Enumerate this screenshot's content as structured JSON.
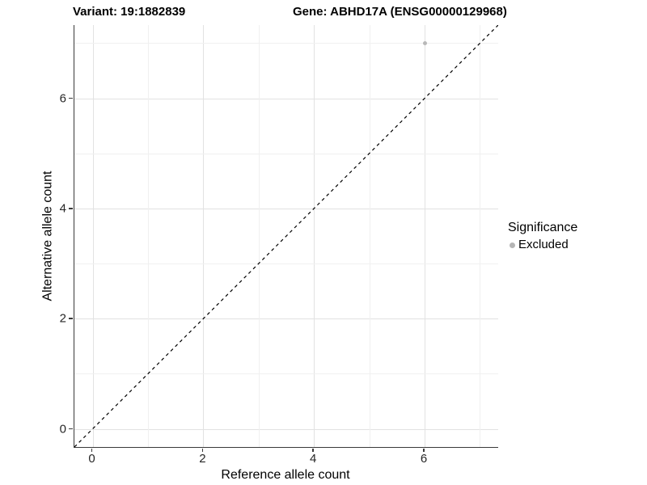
{
  "header": {
    "variant_title": "Variant: 19:1882839",
    "gene_title": "Gene: ABHD17A (ENSG00000129968)"
  },
  "legend": {
    "title": "Significance",
    "items": [
      {
        "label": "Excluded",
        "color": "#b5b5b5"
      }
    ]
  },
  "colors": {
    "background": "#ffffff",
    "major_grid": "#e2e2e2",
    "minor_grid": "#f0f0f0",
    "axis_line": "#3a3a3a",
    "tick_text": "#262626",
    "point_fill": "#b8b8b8",
    "reference_line": "#000000"
  },
  "chart_data": {
    "type": "scatter",
    "title": "",
    "xlabel": "Reference allele count",
    "ylabel": "Alternative allele count",
    "series": [
      {
        "name": "Excluded",
        "color": "#b8b8b8",
        "points": [
          {
            "x": 6,
            "y": 7
          }
        ]
      }
    ],
    "x_ticks": [
      0,
      2,
      4,
      6
    ],
    "y_ticks": [
      0,
      2,
      4,
      6
    ],
    "x_minor_ticks": [
      1,
      3,
      5,
      7
    ],
    "y_minor_ticks": [
      1,
      3,
      5,
      7
    ],
    "xlim": [
      -0.33,
      7.33
    ],
    "ylim": [
      -0.33,
      7.33
    ],
    "grid": true,
    "legend_position": "right",
    "reference_line": {
      "kind": "identity",
      "slope": 1,
      "intercept": 0,
      "style": "dashed"
    }
  }
}
